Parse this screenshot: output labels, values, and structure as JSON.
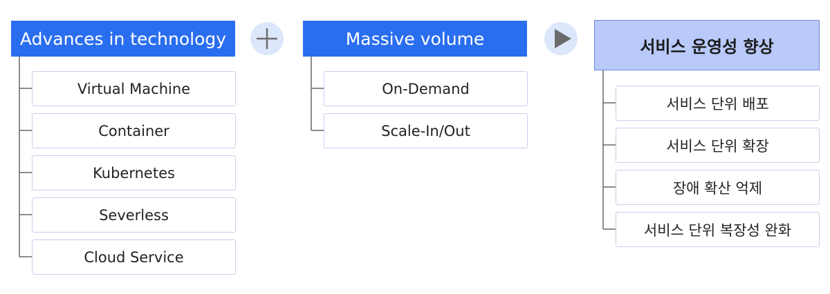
{
  "groups": [
    {
      "header": "Advances in technology",
      "items": [
        "Virtual Machine",
        "Container",
        "Kubernetes",
        "Severless",
        "Cloud Service"
      ]
    },
    {
      "header": "Massive volume",
      "items": [
        "On-Demand",
        "Scale-In/Out"
      ]
    },
    {
      "header": "서비스 운영성 향상",
      "items": [
        "서비스 단위 배포",
        "서비스 단위 확장",
        "장애 확산 억제",
        "서비스 단위 복장성 완화"
      ]
    }
  ],
  "operators": [
    {
      "icon": "plus-icon"
    },
    {
      "icon": "play-arrow-icon"
    }
  ],
  "colors": {
    "header_blue": "#2a6ef0",
    "result_header": "#b8c9fa",
    "item_border": "#c6d0e8",
    "connector": "#666666",
    "operator_bg": "#dde7fb",
    "operator_glyph": "#6b6b6b"
  }
}
